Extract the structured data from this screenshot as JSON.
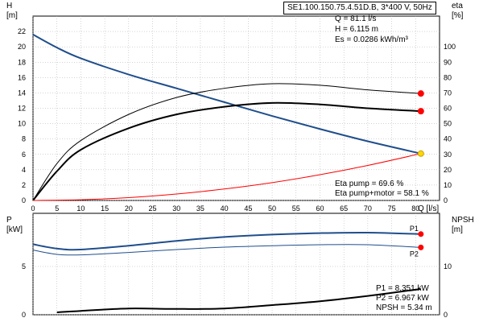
{
  "pump_model": "SE1.100.150.75.4.51D.B, 3*400 V, 50Hz",
  "duty_point": {
    "q": "Q = 81.1 l/s",
    "h": "H = 6.115 m",
    "es": "Es = 0.0286 kWh/m³"
  },
  "efficiency": {
    "pump": "Eta pump = 69.6 %",
    "total": "Eta pump+motor = 58.1 %"
  },
  "power": {
    "p1": "P1 = 8.351 kW",
    "p2": "P2 = 6.967 kW",
    "npsh": "NPSH = 5.34 m"
  },
  "colors": {
    "head_curve": "#1f4e8c",
    "system_curve": "#ff0000",
    "marker_red": "#ff0000",
    "marker_yellow": "#ffd700",
    "grid": "#aaaaaa"
  },
  "chart_data": [
    {
      "type": "line",
      "title": "",
      "x_axis": {
        "label": "Q [l/s]",
        "range": [
          0,
          85
        ],
        "ticks": [
          0,
          5,
          10,
          15,
          20,
          25,
          30,
          35,
          40,
          45,
          50,
          55,
          60,
          65,
          70,
          75,
          80
        ]
      },
      "y_left": {
        "label_top": "H",
        "label_unit": "[m]",
        "range": [
          0,
          24
        ],
        "ticks": [
          0,
          2,
          4,
          6,
          8,
          10,
          12,
          14,
          16,
          18,
          20,
          22
        ]
      },
      "y_right": {
        "label_top": "eta",
        "label_unit": "[%]",
        "range": [
          0,
          120
        ],
        "ticks": [
          0,
          10,
          20,
          30,
          40,
          50,
          60,
          70,
          80,
          90,
          100
        ]
      },
      "grid": true,
      "series": [
        {
          "axis": "left",
          "color": "#1f4e8c",
          "width": 2,
          "x": [
            0,
            5,
            10,
            20,
            30,
            40,
            50,
            60,
            70,
            81.1
          ],
          "y": [
            21.6,
            19.9,
            18.5,
            16.4,
            14.6,
            12.8,
            11.0,
            9.3,
            7.7,
            6.1
          ]
        },
        {
          "axis": "right",
          "color": "#000000",
          "width": 1,
          "x": [
            0,
            5,
            10,
            20,
            30,
            40,
            50,
            60,
            70,
            81.1
          ],
          "y": [
            0,
            24,
            39,
            56,
            67,
            73,
            76,
            75,
            72,
            69.6
          ]
        },
        {
          "axis": "right",
          "color": "#000000",
          "width": 2,
          "x": [
            0,
            5,
            10,
            20,
            30,
            40,
            50,
            60,
            70,
            81.1
          ],
          "y": [
            0,
            19,
            33,
            47,
            56,
            61,
            63.5,
            62.5,
            60,
            58.1
          ]
        },
        {
          "axis": "left",
          "color": "#ff0000",
          "width": 1,
          "x": [
            0,
            10,
            20,
            30,
            40,
            50,
            60,
            70,
            81.1
          ],
          "y": [
            0,
            0.09,
            0.37,
            0.84,
            1.49,
            2.32,
            3.35,
            4.56,
            6.1
          ]
        }
      ],
      "markers": [
        {
          "axis": "right",
          "x": 81.1,
          "y": 69.6,
          "color": "#ff0000"
        },
        {
          "axis": "right",
          "x": 81.1,
          "y": 58.1,
          "color": "#ff0000"
        },
        {
          "axis": "left",
          "x": 81.1,
          "y": 6.1,
          "color": "#ffd700"
        }
      ]
    },
    {
      "type": "line",
      "title": "",
      "x_axis": {
        "label": "",
        "range": [
          0,
          85
        ]
      },
      "y_left": {
        "label_top": "P",
        "label_unit": "[kW]",
        "range": [
          0,
          10.5
        ],
        "ticks": [
          0,
          5
        ]
      },
      "y_right": {
        "label_top": "NPSH",
        "label_unit": "[m]",
        "range": [
          0,
          21
        ],
        "ticks": [
          0,
          10
        ]
      },
      "grid": true,
      "series": [
        {
          "name": "P1",
          "axis": "left",
          "color": "#1f4e8c",
          "width": 2,
          "x": [
            0,
            5,
            10,
            20,
            30,
            40,
            50,
            60,
            70,
            81.1
          ],
          "y": [
            7.3,
            6.85,
            6.75,
            7.15,
            7.65,
            8.05,
            8.3,
            8.45,
            8.5,
            8.35
          ]
        },
        {
          "name": "P2",
          "axis": "left",
          "color": "#1f4e8c",
          "width": 1,
          "x": [
            0,
            5,
            10,
            20,
            30,
            40,
            50,
            60,
            70,
            81.1
          ],
          "y": [
            6.7,
            6.25,
            6.2,
            6.45,
            6.75,
            7.0,
            7.15,
            7.25,
            7.25,
            6.97
          ]
        },
        {
          "axis": "right",
          "color": "#000000",
          "width": 2,
          "x": [
            5,
            10,
            20,
            30,
            40,
            50,
            60,
            70,
            81.1
          ],
          "y": [
            0.5,
            0.8,
            1.3,
            1.2,
            1.3,
            2.0,
            2.8,
            3.9,
            5.34
          ]
        }
      ],
      "markers": [
        {
          "axis": "left",
          "x": 81.1,
          "y": 8.35,
          "color": "#ff0000"
        },
        {
          "axis": "left",
          "x": 81.1,
          "y": 6.97,
          "color": "#ff0000"
        }
      ]
    }
  ]
}
